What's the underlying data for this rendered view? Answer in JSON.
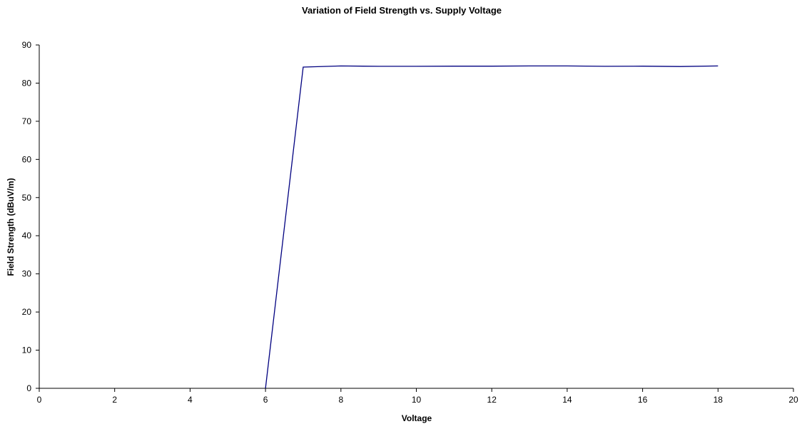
{
  "chart_data": {
    "type": "line",
    "title": "Variation of Field Strength vs. Supply Voltage",
    "xlabel": "Voltage",
    "ylabel": "Field Strength (dBuV/m)",
    "xlim": [
      0,
      20
    ],
    "ylim": [
      0,
      90
    ],
    "x_ticks": [
      0,
      2,
      4,
      6,
      8,
      10,
      12,
      14,
      16,
      18,
      20
    ],
    "y_ticks": [
      0,
      10,
      20,
      30,
      40,
      50,
      60,
      70,
      80,
      90
    ],
    "grid": false,
    "legend": "none",
    "series": [
      {
        "color": "#000080",
        "x": [
          6,
          7,
          8,
          9,
          10,
          11,
          12,
          13,
          14,
          15,
          16,
          17,
          18
        ],
        "y": [
          0,
          84.2,
          84.5,
          84.4,
          84.4,
          84.45,
          84.45,
          84.5,
          84.5,
          84.4,
          84.45,
          84.35,
          84.5
        ]
      }
    ]
  }
}
